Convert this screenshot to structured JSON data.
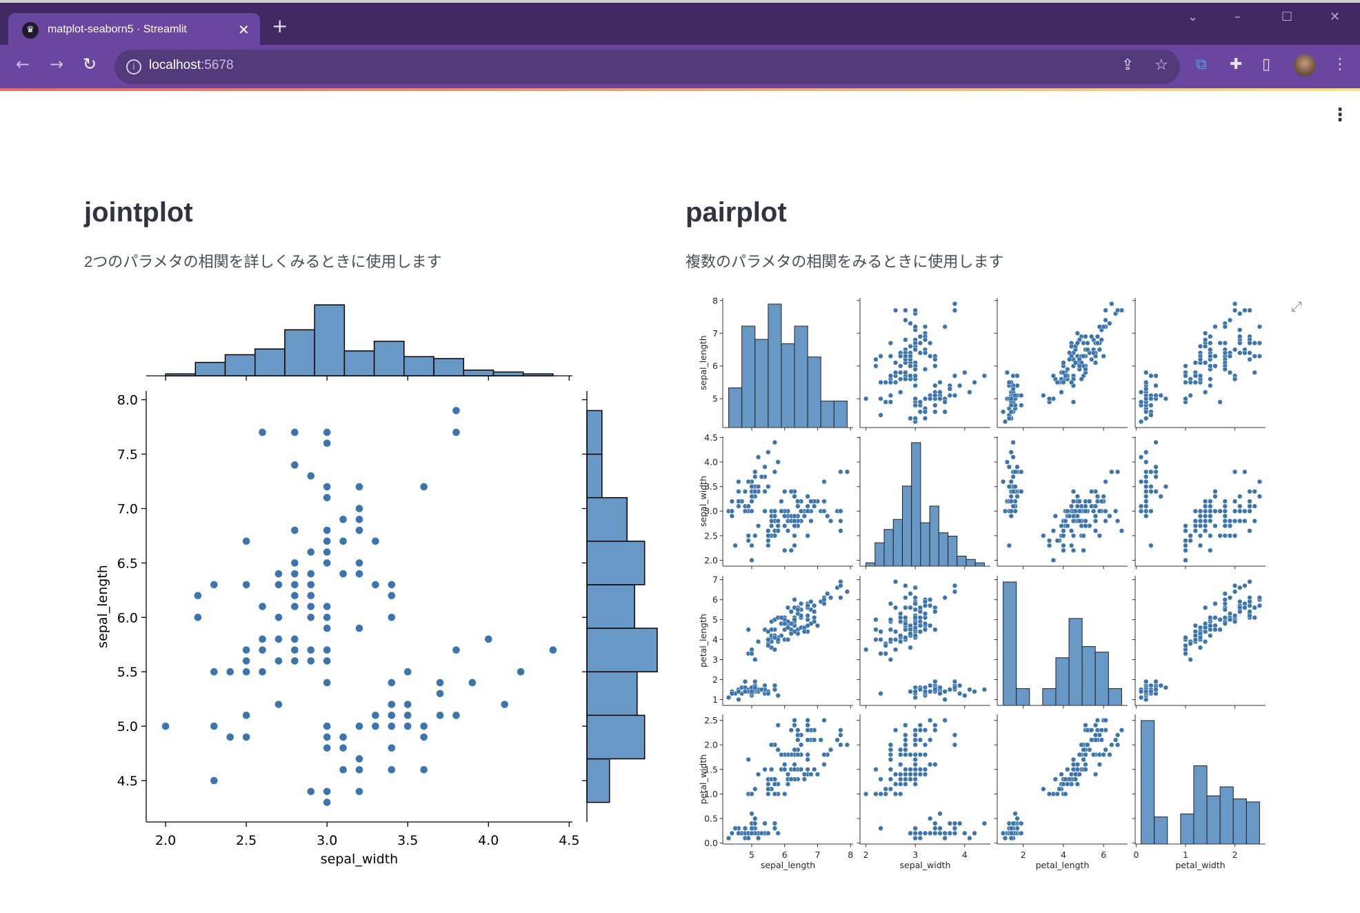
{
  "browser": {
    "tab_title": "matplot-seaborn5 · Streamlit",
    "url_host": "localhost",
    "url_port": ":5678",
    "icons": [
      "streamlit-logo-icon",
      "close-icon",
      "plus-icon",
      "chevron-down-icon",
      "minimize-icon",
      "maximize-icon",
      "window-close-icon",
      "back-icon",
      "forward-icon",
      "reload-icon",
      "info-icon",
      "share-icon",
      "star-icon",
      "extension-icon",
      "puzzle-icon",
      "side-panel-icon",
      "avatar",
      "menu-icon"
    ],
    "colors": {
      "tabbar": "#412a64",
      "toolbar": "#6a46a0",
      "omnibox": "#523a7b"
    }
  },
  "page": {
    "menu_icon": "kebab-menu-icon",
    "jointplot": {
      "title": "jointplot",
      "subtitle": "2つのパラメタの相関を詳しくみるときに使用します"
    },
    "pairplot": {
      "title": "pairplot",
      "subtitle": "複数のパラメタの相関をみるときに使用します",
      "expand_icon": "fullscreen-expand-icon"
    }
  },
  "chart_data": [
    {
      "type": "scatter",
      "kind": "jointplot",
      "marginal": "histogram",
      "xlabel": "sepal_width",
      "ylabel": "sepal_length",
      "xlim": [
        1.88,
        4.52
      ],
      "ylim": [
        4.12,
        8.08
      ],
      "xticks": [
        "2.0",
        "2.5",
        "3.0",
        "3.5",
        "4.0",
        "4.5"
      ],
      "yticks": [
        "4.5",
        "5.0",
        "5.5",
        "6.0",
        "6.5",
        "7.0",
        "7.5",
        "8.0"
      ],
      "grid": false,
      "colors": {
        "point": "#3a75af",
        "bar": "#6898c5",
        "edge": "#000000"
      },
      "x": [
        3.5,
        3.0,
        3.2,
        3.1,
        3.6,
        3.9,
        3.4,
        3.4,
        2.9,
        3.1,
        3.7,
        3.4,
        3.0,
        3.0,
        4.0,
        4.4,
        3.9,
        3.5,
        3.8,
        3.8,
        3.4,
        3.7,
        3.6,
        3.3,
        3.4,
        3.0,
        3.4,
        3.5,
        3.4,
        3.2,
        3.1,
        3.4,
        4.1,
        4.2,
        3.1,
        3.2,
        3.5,
        3.6,
        3.0,
        3.4,
        3.5,
        2.3,
        3.2,
        3.5,
        3.8,
        3.0,
        3.8,
        3.2,
        3.7,
        3.3,
        3.2,
        3.2,
        3.1,
        2.3,
        2.8,
        2.8,
        3.3,
        2.4,
        2.9,
        2.7,
        2.0,
        3.0,
        2.2,
        2.9,
        2.9,
        3.1,
        3.0,
        2.7,
        2.2,
        2.5,
        3.2,
        2.8,
        2.5,
        2.8,
        2.9,
        3.0,
        2.8,
        3.0,
        2.9,
        2.6,
        2.4,
        2.4,
        2.7,
        2.7,
        3.0,
        3.4,
        3.1,
        2.3,
        3.0,
        2.5,
        2.6,
        3.0,
        2.6,
        2.3,
        2.7,
        3.0,
        2.9,
        2.9,
        2.5,
        2.8,
        3.3,
        2.7,
        3.0,
        2.9,
        3.0,
        3.0,
        2.5,
        2.9,
        2.5,
        3.6,
        3.2,
        2.7,
        3.0,
        2.5,
        2.8,
        3.2,
        3.0,
        3.8,
        2.6,
        2.2,
        3.2,
        2.8,
        2.8,
        2.7,
        3.3,
        3.2,
        2.8,
        3.0,
        2.8,
        3.0,
        2.8,
        3.8,
        2.8,
        2.8,
        2.6,
        3.0,
        3.4,
        3.1,
        3.0,
        3.1,
        3.1,
        3.1,
        2.7,
        3.2,
        3.3,
        3.0,
        2.5,
        3.0,
        3.4,
        3.0
      ],
      "y": [
        5.1,
        4.9,
        4.7,
        4.6,
        5.0,
        5.4,
        4.6,
        5.0,
        4.4,
        4.9,
        5.4,
        4.8,
        4.8,
        4.3,
        5.8,
        5.7,
        5.4,
        5.1,
        5.7,
        5.1,
        5.4,
        5.1,
        4.6,
        5.1,
        4.8,
        5.0,
        5.0,
        5.2,
        5.2,
        4.7,
        4.8,
        5.4,
        5.2,
        5.5,
        4.9,
        5.0,
        5.5,
        4.9,
        4.4,
        5.1,
        5.0,
        4.5,
        4.4,
        5.0,
        5.1,
        4.8,
        5.1,
        4.6,
        5.3,
        5.0,
        7.0,
        6.4,
        6.9,
        5.5,
        6.5,
        5.7,
        6.3,
        4.9,
        6.6,
        5.2,
        5.0,
        5.9,
        6.0,
        6.1,
        5.6,
        6.7,
        5.6,
        5.8,
        6.2,
        5.6,
        5.9,
        6.1,
        6.3,
        6.1,
        6.4,
        6.6,
        6.8,
        6.7,
        6.0,
        5.7,
        5.5,
        5.5,
        5.8,
        6.0,
        5.4,
        6.0,
        6.7,
        6.3,
        5.6,
        5.5,
        5.5,
        6.1,
        5.8,
        5.0,
        5.6,
        5.7,
        5.7,
        6.2,
        5.1,
        5.7,
        6.3,
        5.8,
        7.1,
        6.3,
        6.5,
        7.6,
        4.9,
        7.3,
        6.7,
        7.2,
        6.5,
        6.4,
        6.8,
        5.7,
        5.8,
        6.4,
        6.5,
        7.7,
        7.7,
        6.0,
        6.9,
        5.6,
        7.7,
        6.3,
        6.7,
        7.2,
        6.2,
        6.1,
        6.4,
        7.2,
        7.4,
        7.9,
        6.4,
        6.3,
        6.1,
        7.7,
        6.3,
        6.4,
        6.0,
        6.9,
        6.7,
        6.9,
        5.8,
        6.8,
        6.7,
        6.7,
        6.3,
        6.5,
        6.2,
        5.9
      ]
    },
    {
      "type": "scatter",
      "kind": "pairplot",
      "diagonal": "histogram",
      "grid": false,
      "colors": {
        "point": "#3a75af",
        "bar": "#6898c5",
        "edge": "#222222"
      },
      "variables": [
        "sepal_length",
        "sepal_width",
        "petal_length",
        "petal_width"
      ],
      "limits": {
        "sepal_length": [
          4.12,
          8.08
        ],
        "sepal_width": [
          1.88,
          4.52
        ],
        "petal_length": [
          0.705,
          7.195
        ],
        "petal_width": [
          -0.02,
          2.62
        ]
      },
      "yticks": {
        "sepal_length": [
          "5",
          "6",
          "7",
          "8"
        ],
        "sepal_width": [
          "2.0",
          "2.5",
          "3.0",
          "3.5",
          "4.0",
          "4.5"
        ],
        "petal_length": [
          "1",
          "2",
          "3",
          "4",
          "5",
          "6",
          "7"
        ],
        "petal_width": [
          "0.0",
          "0.5",
          "1.0",
          "1.5",
          "2.0",
          "2.5"
        ]
      },
      "xticks": {
        "sepal_length": [
          "5",
          "6",
          "7",
          "8"
        ],
        "sepal_width": [
          "2",
          "3",
          "4"
        ],
        "petal_length": [
          "2",
          "4",
          "6"
        ],
        "petal_width": [
          "0",
          "1",
          "2"
        ]
      },
      "values": {
        "sepal_length": [
          5.1,
          4.9,
          4.7,
          4.6,
          5.0,
          5.4,
          4.6,
          5.0,
          4.4,
          4.9,
          5.4,
          4.8,
          4.8,
          4.3,
          5.8,
          5.7,
          5.4,
          5.1,
          5.7,
          5.1,
          5.4,
          5.1,
          4.6,
          5.1,
          4.8,
          5.0,
          5.0,
          5.2,
          5.2,
          4.7,
          4.8,
          5.4,
          5.2,
          5.5,
          4.9,
          5.0,
          5.5,
          4.9,
          4.4,
          5.1,
          5.0,
          4.5,
          4.4,
          5.0,
          5.1,
          4.8,
          5.1,
          4.6,
          5.3,
          5.0,
          7.0,
          6.4,
          6.9,
          5.5,
          6.5,
          5.7,
          6.3,
          4.9,
          6.6,
          5.2,
          5.0,
          5.9,
          6.0,
          6.1,
          5.6,
          6.7,
          5.6,
          5.8,
          6.2,
          5.6,
          5.9,
          6.1,
          6.3,
          6.1,
          6.4,
          6.6,
          6.8,
          6.7,
          6.0,
          5.7,
          5.5,
          5.5,
          5.8,
          6.0,
          5.4,
          6.0,
          6.7,
          6.3,
          5.6,
          5.5,
          5.5,
          6.1,
          5.8,
          5.0,
          5.6,
          5.7,
          5.7,
          6.2,
          5.1,
          5.7,
          6.3,
          5.8,
          7.1,
          6.3,
          6.5,
          7.6,
          4.9,
          7.3,
          6.7,
          7.2,
          6.5,
          6.4,
          6.8,
          5.7,
          5.8,
          6.4,
          6.5,
          7.7,
          7.7,
          6.0,
          6.9,
          5.6,
          7.7,
          6.3,
          6.7,
          7.2,
          6.2,
          6.1,
          6.4,
          7.2,
          7.4,
          7.9,
          6.4,
          6.3,
          6.1,
          7.7,
          6.3,
          6.4,
          6.0,
          6.9,
          6.7,
          6.9,
          5.8,
          6.8,
          6.7,
          6.7,
          6.3,
          6.5,
          6.2,
          5.9
        ],
        "sepal_width": [
          3.5,
          3.0,
          3.2,
          3.1,
          3.6,
          3.9,
          3.4,
          3.4,
          2.9,
          3.1,
          3.7,
          3.4,
          3.0,
          3.0,
          4.0,
          4.4,
          3.9,
          3.5,
          3.8,
          3.8,
          3.4,
          3.7,
          3.6,
          3.3,
          3.4,
          3.0,
          3.4,
          3.5,
          3.4,
          3.2,
          3.1,
          3.4,
          4.1,
          4.2,
          3.1,
          3.2,
          3.5,
          3.6,
          3.0,
          3.4,
          3.5,
          2.3,
          3.2,
          3.5,
          3.8,
          3.0,
          3.8,
          3.2,
          3.7,
          3.3,
          3.2,
          3.2,
          3.1,
          2.3,
          2.8,
          2.8,
          3.3,
          2.4,
          2.9,
          2.7,
          2.0,
          3.0,
          2.2,
          2.9,
          2.9,
          3.1,
          3.0,
          2.7,
          2.2,
          2.5,
          3.2,
          2.8,
          2.5,
          2.8,
          2.9,
          3.0,
          2.8,
          3.0,
          2.9,
          2.6,
          2.4,
          2.4,
          2.7,
          2.7,
          3.0,
          3.4,
          3.1,
          2.3,
          3.0,
          2.5,
          2.6,
          3.0,
          2.6,
          2.3,
          2.7,
          3.0,
          2.9,
          2.9,
          2.5,
          2.8,
          3.3,
          2.7,
          3.0,
          2.9,
          3.0,
          3.0,
          2.5,
          2.9,
          2.5,
          3.6,
          3.2,
          2.7,
          3.0,
          2.5,
          2.8,
          3.2,
          3.0,
          3.8,
          2.6,
          2.2,
          3.2,
          2.8,
          2.8,
          2.7,
          3.3,
          3.2,
          2.8,
          3.0,
          2.8,
          3.0,
          2.8,
          3.8,
          2.8,
          2.8,
          2.6,
          3.0,
          3.4,
          3.1,
          3.0,
          3.1,
          3.1,
          3.1,
          2.7,
          3.2,
          3.3,
          3.0,
          2.5,
          3.0,
          3.4,
          3.0
        ],
        "petal_length": [
          1.4,
          1.4,
          1.3,
          1.5,
          1.4,
          1.7,
          1.4,
          1.5,
          1.4,
          1.5,
          1.5,
          1.6,
          1.4,
          1.1,
          1.2,
          1.5,
          1.3,
          1.4,
          1.7,
          1.5,
          1.7,
          1.5,
          1.0,
          1.7,
          1.9,
          1.6,
          1.6,
          1.5,
          1.4,
          1.6,
          1.6,
          1.5,
          1.5,
          1.4,
          1.5,
          1.2,
          1.3,
          1.4,
          1.3,
          1.5,
          1.3,
          1.3,
          1.3,
          1.6,
          1.9,
          1.4,
          1.6,
          1.4,
          1.5,
          1.4,
          4.7,
          4.5,
          4.9,
          4.0,
          4.6,
          4.5,
          4.7,
          3.3,
          4.6,
          3.9,
          3.5,
          4.2,
          4.0,
          4.7,
          3.6,
          4.4,
          4.5,
          4.1,
          4.5,
          3.9,
          4.8,
          4.0,
          4.9,
          4.7,
          4.3,
          4.4,
          4.8,
          5.0,
          4.5,
          3.5,
          3.8,
          3.7,
          3.9,
          5.1,
          4.5,
          4.5,
          4.7,
          4.4,
          4.1,
          4.0,
          4.4,
          4.6,
          4.0,
          3.3,
          4.2,
          4.2,
          4.2,
          4.3,
          3.0,
          4.1,
          6.0,
          5.1,
          5.9,
          5.6,
          5.8,
          6.6,
          4.5,
          6.3,
          5.8,
          6.1,
          5.1,
          5.3,
          5.5,
          5.0,
          5.1,
          5.3,
          5.5,
          6.7,
          6.9,
          5.0,
          5.7,
          4.9,
          6.7,
          4.9,
          5.7,
          6.0,
          4.8,
          4.9,
          5.6,
          5.8,
          6.1,
          6.4,
          5.6,
          5.1,
          5.6,
          6.1,
          5.6,
          5.5,
          4.8,
          5.4,
          5.6,
          5.1,
          5.1,
          5.9,
          5.7,
          5.2,
          5.0,
          5.2,
          5.4,
          5.1
        ],
        "petal_width": [
          0.2,
          0.2,
          0.2,
          0.2,
          0.2,
          0.4,
          0.3,
          0.2,
          0.2,
          0.1,
          0.2,
          0.2,
          0.1,
          0.1,
          0.2,
          0.4,
          0.4,
          0.3,
          0.3,
          0.3,
          0.2,
          0.4,
          0.2,
          0.5,
          0.2,
          0.2,
          0.4,
          0.2,
          0.2,
          0.2,
          0.2,
          0.4,
          0.1,
          0.2,
          0.2,
          0.2,
          0.2,
          0.1,
          0.2,
          0.2,
          0.3,
          0.3,
          0.2,
          0.6,
          0.4,
          0.3,
          0.2,
          0.2,
          0.2,
          0.2,
          1.4,
          1.5,
          1.5,
          1.3,
          1.5,
          1.3,
          1.6,
          1.0,
          1.3,
          1.4,
          1.0,
          1.5,
          1.0,
          1.4,
          1.3,
          1.4,
          1.5,
          1.0,
          1.5,
          1.1,
          1.8,
          1.3,
          1.5,
          1.2,
          1.3,
          1.4,
          1.4,
          1.7,
          1.5,
          1.0,
          1.1,
          1.0,
          1.2,
          1.6,
          1.5,
          1.6,
          1.5,
          1.3,
          1.3,
          1.3,
          1.2,
          1.4,
          1.2,
          1.0,
          1.3,
          1.2,
          1.3,
          1.3,
          1.1,
          1.3,
          2.5,
          1.9,
          2.1,
          1.8,
          2.2,
          2.1,
          1.7,
          1.8,
          1.8,
          2.5,
          2.0,
          1.9,
          2.1,
          2.0,
          2.4,
          2.3,
          1.8,
          2.2,
          2.3,
          1.5,
          2.3,
          2.0,
          2.0,
          1.8,
          2.1,
          1.8,
          1.8,
          1.8,
          2.1,
          1.6,
          1.9,
          2.0,
          2.2,
          1.5,
          1.4,
          2.3,
          2.4,
          1.8,
          1.8,
          2.1,
          2.4,
          2.3,
          1.9,
          2.3,
          2.5,
          2.3,
          1.9,
          2.0,
          2.3,
          1.8
        ]
      }
    }
  ]
}
